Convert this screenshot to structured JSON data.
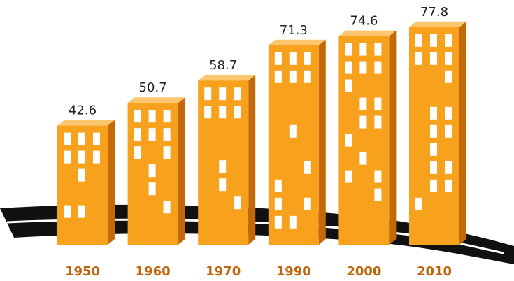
{
  "chart_data": {
    "type": "bar",
    "categories": [
      "1950",
      "1960",
      "1970",
      "1990",
      "2000",
      "2010"
    ],
    "values": [
      42.6,
      50.7,
      58.7,
      71.3,
      74.6,
      77.8
    ],
    "color": "#f7a11c"
  }
}
